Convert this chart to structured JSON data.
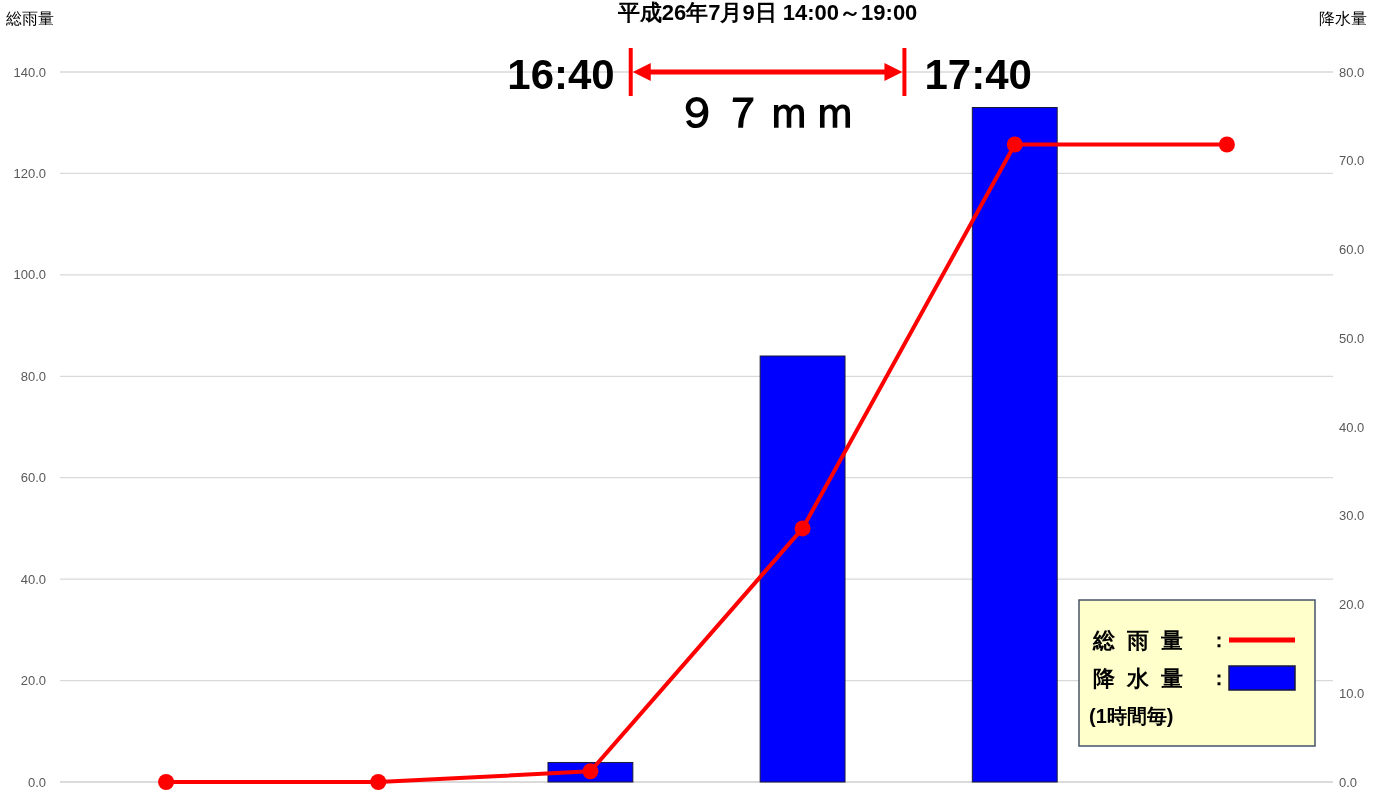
{
  "chart_data": {
    "type": "bar",
    "title": "平成26年7月9日 14:00～19:00",
    "ylabel": "総雨量",
    "y2label": "降水量",
    "categories": [
      null,
      null,
      null,
      null,
      null,
      null
    ],
    "series": [
      {
        "name": "総雨量",
        "type": "line",
        "color": "#ff0000",
        "values": [
          0,
          0,
          2.1,
          50.0,
          125.7,
          125.7
        ]
      },
      {
        "name": "降水量",
        "axis": "y2",
        "color": "#0000ff",
        "values": [
          0,
          0,
          2.2,
          48.0,
          76.0,
          null
        ]
      }
    ],
    "ylim": [
      0,
      140
    ],
    "yticks": [
      {
        "value": 0,
        "label": "0.0"
      },
      {
        "value": 20,
        "label": "20.0"
      },
      {
        "value": 40,
        "label": "40.0"
      },
      {
        "value": 60,
        "label": "60.0"
      },
      {
        "value": 80,
        "label": "80.0"
      },
      {
        "value": 100,
        "label": "100.0"
      },
      {
        "value": 120,
        "label": "120.0"
      },
      {
        "value": 140,
        "label": "140.0"
      }
    ],
    "y2lim": [
      0,
      80
    ],
    "y2ticks": [
      {
        "value": 0,
        "label": "0.0"
      },
      {
        "value": 10,
        "label": "10.0"
      },
      {
        "value": 20,
        "label": "20.0"
      },
      {
        "value": 30,
        "label": "30.0"
      },
      {
        "value": 40,
        "label": "40.0"
      },
      {
        "value": 50,
        "label": "50.0"
      },
      {
        "value": 60,
        "label": "60.0"
      },
      {
        "value": 70,
        "label": "70.0"
      },
      {
        "value": 80,
        "label": "80.0"
      }
    ],
    "annotations": [
      "16:40",
      "17:40",
      "９７ｍｍ",
      "(1時間毎)",
      "：",
      "："
    ],
    "grid": "y",
    "legend": "bottom right",
    "marker": "circle",
    "line_style": "solid"
  }
}
